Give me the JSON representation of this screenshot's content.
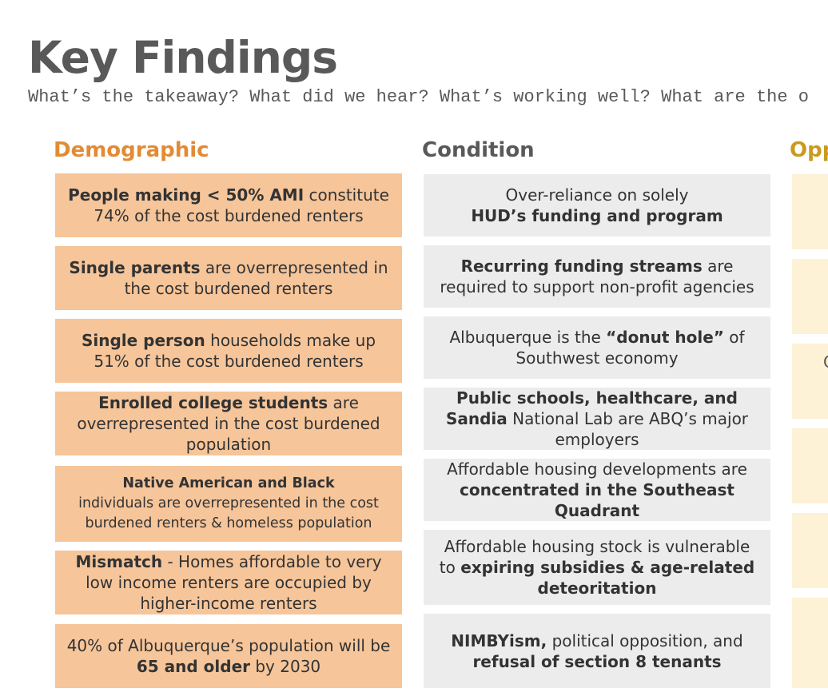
{
  "page": {
    "title": "Key Findings",
    "subtitle": "What’s the takeaway? What did we hear? What’s working well? What are the o"
  },
  "columns": {
    "demographic": {
      "header": "Demographic",
      "color": "#e28b34",
      "cards": [
        {
          "parts": [
            {
              "b": "People making < 50% AMI"
            },
            {
              "t": " constitute 74% of the cost burdened renters"
            }
          ]
        },
        {
          "parts": [
            {
              "b": "Single parents"
            },
            {
              "t": " are overrepresented in the cost burdened renters"
            }
          ]
        },
        {
          "parts": [
            {
              "b": "Single person"
            },
            {
              "t": " households make up 51% of the cost burdened renters"
            }
          ]
        },
        {
          "parts": [
            {
              "b": "Enrolled college students"
            },
            {
              "t": " are overrepresented in the cost burdened population"
            }
          ]
        },
        {
          "parts": [
            {
              "b": "Native American and Black"
            },
            {
              "br": true
            },
            {
              "t": "individuals are overrepresented in the cost burdened renters & homeless population"
            }
          ]
        },
        {
          "parts": [
            {
              "b": "Mismatch"
            },
            {
              "t": " - Homes affordable to very low income renters are occupied by higher-income renters"
            }
          ]
        },
        {
          "parts": [
            {
              "t": "40% of Albuquerque’s population will be "
            },
            {
              "b": "65 and older"
            },
            {
              "t": " by 2030"
            }
          ]
        }
      ]
    },
    "condition": {
      "header": "Condition",
      "color": "#595959",
      "cards": [
        {
          "parts": [
            {
              "t": "Over-reliance on solely"
            },
            {
              "br": true
            },
            {
              "b": "HUD’s funding and program"
            }
          ]
        },
        {
          "parts": [
            {
              "b": "Recurring funding streams"
            },
            {
              "t": " are required to support non-profit agencies"
            }
          ]
        },
        {
          "parts": [
            {
              "t": "Albuquerque is the "
            },
            {
              "b": "“donut hole”"
            },
            {
              "t": " of Southwest economy"
            }
          ]
        },
        {
          "parts": [
            {
              "b": "Public schools, healthcare, and Sandia"
            },
            {
              "t": " National Lab are ABQ’s major employers"
            }
          ]
        },
        {
          "parts": [
            {
              "t": "Affordable housing developments are "
            },
            {
              "b": "concentrated in the Southeast Quadrant"
            }
          ]
        },
        {
          "parts": [
            {
              "t": "Affordable housing stock is vulnerable to "
            },
            {
              "b": "expiring subsidies & age-related deteoritation"
            }
          ]
        },
        {
          "parts": [
            {
              "b": "NIMBYism,"
            },
            {
              "t": " political opposition, and "
            },
            {
              "b": "refusal of section 8 tenants"
            }
          ]
        }
      ]
    },
    "opportunity": {
      "header": "Opp",
      "color": "#c99a1e",
      "fragment": "C"
    }
  }
}
